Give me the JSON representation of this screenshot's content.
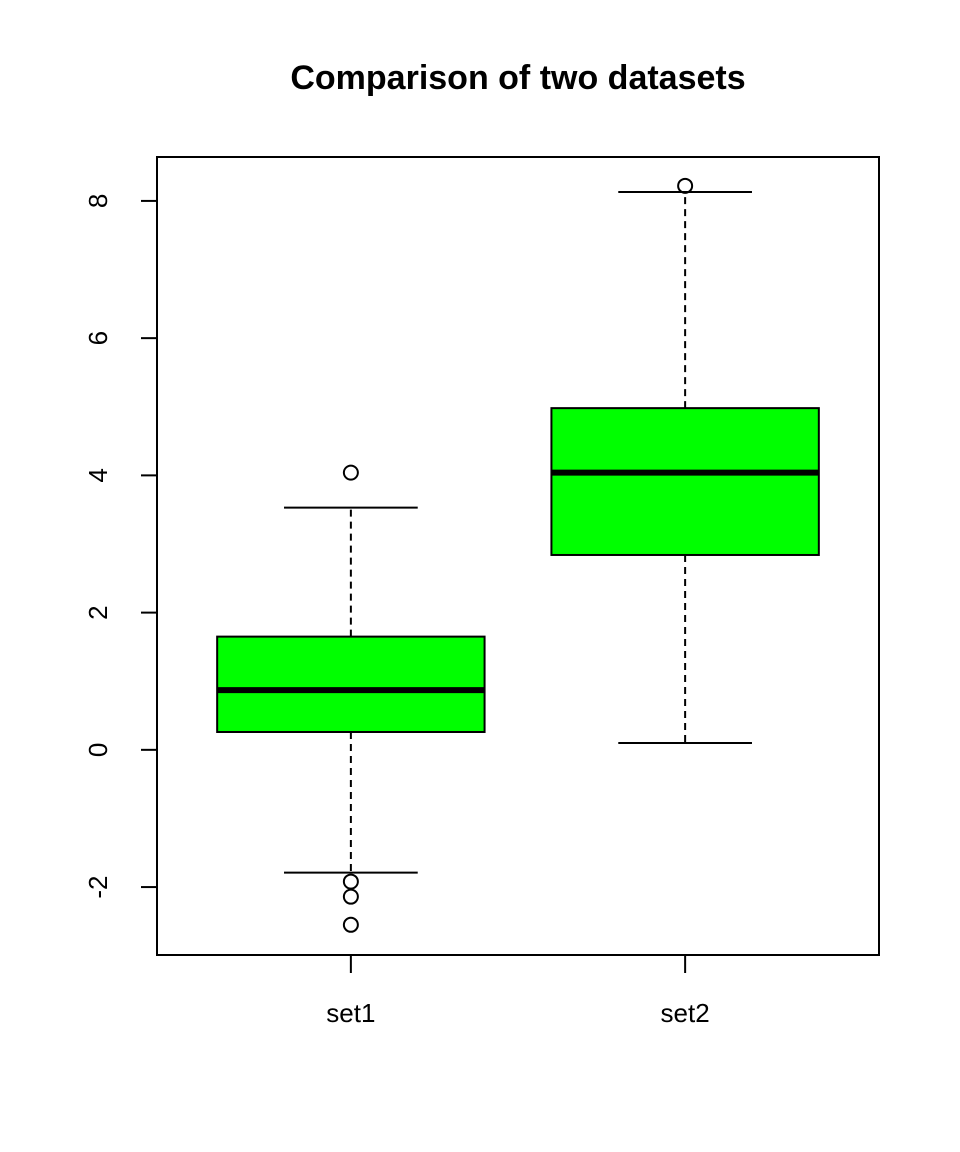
{
  "chart_data": {
    "type": "boxplot",
    "title": "Comparison of two datasets",
    "categories": [
      "set1",
      "set2"
    ],
    "color": "#00ff00",
    "boxes": [
      {
        "whisker_low": -1.79,
        "q1": 0.26,
        "median": 0.87,
        "q3": 1.65,
        "whisker_high": 3.53,
        "outliers": [
          4.04,
          -1.92,
          -2.14,
          -2.55
        ]
      },
      {
        "whisker_low": 0.1,
        "q1": 2.84,
        "median": 4.04,
        "q3": 4.98,
        "whisker_high": 8.13,
        "outliers": [
          8.22
        ]
      }
    ],
    "ylim": [
      -2.99,
      8.64
    ],
    "yticks": [
      -2,
      0,
      2,
      4,
      6,
      8
    ]
  }
}
